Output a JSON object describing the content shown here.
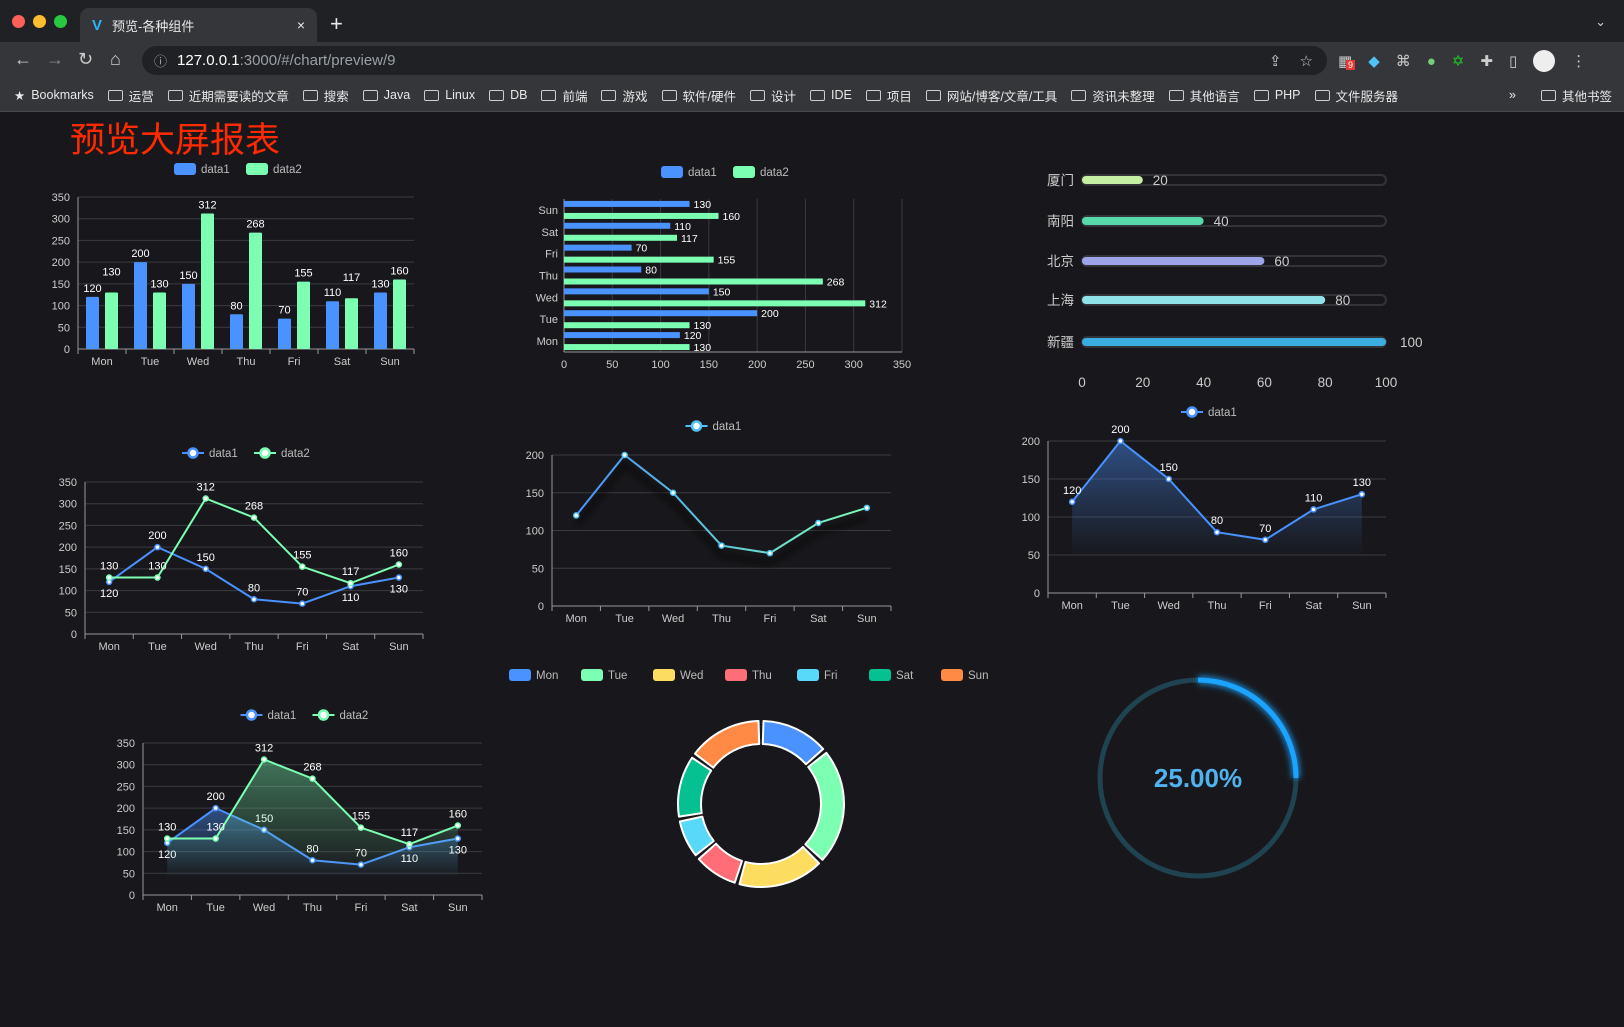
{
  "browser": {
    "tab_title": "预览-各种组件",
    "tab_close": "×",
    "new_tab": "+",
    "tab_menu": "⌄",
    "url_host": "127.0.0.1",
    "url_path": ":3000/#/chart/preview/9",
    "ext_badge": "9",
    "bookmarks": [
      "Bookmarks",
      "运营",
      "近期需要读的文章",
      "搜索",
      "Java",
      "Linux",
      "DB",
      "前端",
      "游戏",
      "软件/硬件",
      "设计",
      "IDE",
      "项目",
      "网站/博客/文章/工具",
      "资讯未整理",
      "其他语言",
      "PHP",
      "文件服务器"
    ],
    "bookmarks_more": "»",
    "other_bookmarks": "其他书签"
  },
  "page_title": "预览大屏报表",
  "chart_data": [
    {
      "type": "bar",
      "orientation": "vertical",
      "categories": [
        "Mon",
        "Tue",
        "Wed",
        "Thu",
        "Fri",
        "Sat",
        "Sun"
      ],
      "ylim": [
        0,
        350
      ],
      "yticks": [
        0,
        50,
        100,
        150,
        200,
        250,
        300,
        350
      ],
      "grid": true,
      "legend": "top-center",
      "series": [
        {
          "name": "data1",
          "values": [
            120,
            200,
            150,
            80,
            70,
            110,
            130
          ],
          "color": "#4992ff"
        },
        {
          "name": "data2",
          "values": [
            130,
            130,
            312,
            268,
            155,
            117,
            160
          ],
          "color": "#7cffb2"
        }
      ]
    },
    {
      "type": "bar",
      "orientation": "horizontal",
      "categories": [
        "Mon",
        "Tue",
        "Wed",
        "Thu",
        "Fri",
        "Sat",
        "Sun"
      ],
      "xlim": [
        0,
        350
      ],
      "xticks": [
        0,
        50,
        100,
        150,
        200,
        250,
        300,
        350
      ],
      "grid": true,
      "legend": "top-center",
      "series": [
        {
          "name": "data1",
          "values": [
            120,
            200,
            150,
            80,
            70,
            110,
            130
          ],
          "color": "#4992ff"
        },
        {
          "name": "data2",
          "values": [
            130,
            130,
            312,
            268,
            155,
            117,
            160
          ],
          "color": "#7cffb2"
        }
      ]
    },
    {
      "type": "bar",
      "orientation": "progress",
      "categories": [
        "厦门",
        "南阳",
        "北京",
        "上海",
        "新疆"
      ],
      "values": [
        20,
        40,
        60,
        80,
        100
      ],
      "xlim": [
        0,
        100
      ],
      "xticks": [
        0,
        20,
        40,
        60,
        80,
        100
      ],
      "colors": [
        "#c5f0a4",
        "#58d9a9",
        "#9da5e8",
        "#8fe3e8",
        "#3aaee0"
      ]
    },
    {
      "type": "line",
      "categories": [
        "Mon",
        "Tue",
        "Wed",
        "Thu",
        "Fri",
        "Sat",
        "Sun"
      ],
      "ylim": [
        0,
        350
      ],
      "yticks": [
        0,
        50,
        100,
        150,
        200,
        250,
        300,
        350
      ],
      "grid": true,
      "legend": "top-center",
      "series": [
        {
          "name": "data1",
          "values": [
            120,
            200,
            150,
            80,
            70,
            110,
            130
          ],
          "color": "#4992ff"
        },
        {
          "name": "data2",
          "values": [
            130,
            130,
            312,
            268,
            155,
            117,
            160
          ],
          "color": "#7cffb2"
        }
      ]
    },
    {
      "type": "line",
      "categories": [
        "Mon",
        "Tue",
        "Wed",
        "Thu",
        "Fri",
        "Sat",
        "Sun"
      ],
      "ylim": [
        0,
        200
      ],
      "yticks": [
        0,
        50,
        100,
        150,
        200
      ],
      "grid": true,
      "legend": "top-center",
      "series": [
        {
          "name": "data1",
          "values": [
            120,
            200,
            150,
            80,
            70,
            110,
            130
          ],
          "color": "#4fc3f7",
          "gradient": [
            "#4992ff",
            "#7cffb2"
          ]
        }
      ]
    },
    {
      "type": "area",
      "categories": [
        "Mon",
        "Tue",
        "Wed",
        "Thu",
        "Fri",
        "Sat",
        "Sun"
      ],
      "ylim": [
        0,
        200
      ],
      "yticks": [
        0,
        50,
        100,
        150,
        200
      ],
      "grid": true,
      "legend": "top-center",
      "series": [
        {
          "name": "data1",
          "values": [
            120,
            200,
            150,
            80,
            70,
            110,
            130
          ],
          "color": "#4992ff"
        }
      ]
    },
    {
      "type": "area",
      "categories": [
        "Mon",
        "Tue",
        "Wed",
        "Thu",
        "Fri",
        "Sat",
        "Sun"
      ],
      "ylim": [
        0,
        350
      ],
      "yticks": [
        0,
        50,
        100,
        150,
        200,
        250,
        300,
        350
      ],
      "grid": true,
      "legend": "top-center",
      "series": [
        {
          "name": "data1",
          "values": [
            120,
            200,
            150,
            80,
            70,
            110,
            130
          ],
          "color": "#4992ff"
        },
        {
          "name": "data2",
          "values": [
            130,
            130,
            312,
            268,
            155,
            117,
            160
          ],
          "color": "#7cffb2"
        }
      ]
    },
    {
      "type": "pie",
      "donut": true,
      "legend": "top-center",
      "categories": [
        "Mon",
        "Tue",
        "Wed",
        "Thu",
        "Fri",
        "Sat",
        "Sun"
      ],
      "values": [
        120,
        200,
        150,
        80,
        70,
        110,
        130
      ],
      "colors": [
        "#4992ff",
        "#7cffb2",
        "#fddd60",
        "#ff6e76",
        "#58d9f9",
        "#05c091",
        "#ff8a45"
      ]
    },
    {
      "type": "gauge",
      "value": 25,
      "label": "25.00%",
      "color": "#1aa3ff",
      "track": "#1f4350"
    }
  ]
}
